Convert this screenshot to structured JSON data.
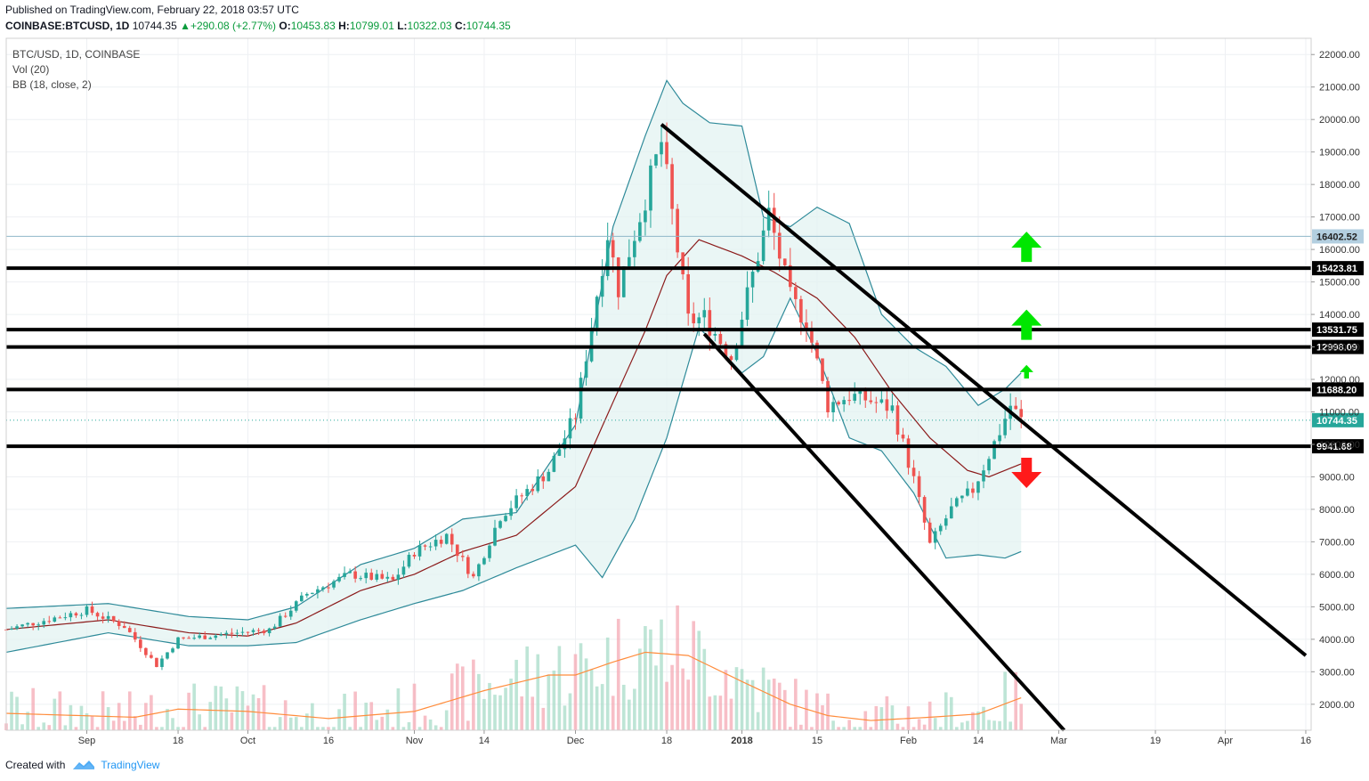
{
  "header": {
    "published": "Published on TradingView.com, February 22, 2018 03:57 UTC",
    "symbol": "COINBASE:BTCUSD, 1D",
    "last": "10744.35",
    "change": "▲+290.08 (+2.77%)",
    "o_label": "O:",
    "o": "10453.83",
    "h_label": "H:",
    "h": "10799.01",
    "l_label": "L:",
    "l": "10322.03",
    "c_label": "C:",
    "c": "10744.35"
  },
  "legend": {
    "line1": "BTC/USD, 1D, COINBASE",
    "line2": "Vol (20)",
    "line3": "BB (18, close, 2)"
  },
  "footer": {
    "created": "Created with",
    "brand": "TradingView"
  },
  "colors": {
    "up": "#26a69a",
    "down": "#ef5350",
    "bb_band": "#2e8a99",
    "bb_mid": "#8b1a1a",
    "vol_ma": "#ff8c3c",
    "arrow_up": "#00e600",
    "arrow_down": "#ff1a1a"
  },
  "chart_data": {
    "type": "candlestick",
    "ylim": [
      1200,
      22500
    ],
    "y_ticks": [
      2000,
      3000,
      4000,
      5000,
      6000,
      7000,
      8000,
      9000,
      10000,
      11000,
      12000,
      13000,
      14000,
      15000,
      16000,
      17000,
      18000,
      19000,
      20000,
      21000,
      22000
    ],
    "y_tick_labels": [
      "2000.00",
      "3000.00",
      "4000.00",
      "5000.00",
      "6000.00",
      "7000.00",
      "8000.00",
      "9000.00",
      "10000.00",
      "11000.00",
      "12000.00",
      "13000.00",
      "14000.00",
      "15000.00",
      "16000.00",
      "17000.00",
      "18000.00",
      "19000.00",
      "20000.00",
      "21000.00",
      "22000.00"
    ],
    "x_ticks": [
      {
        "date": "2017-09-01",
        "label": "Sep"
      },
      {
        "date": "2017-09-18",
        "label": "18"
      },
      {
        "date": "2017-10-01",
        "label": "Oct"
      },
      {
        "date": "2017-10-16",
        "label": "16"
      },
      {
        "date": "2017-11-01",
        "label": "Nov"
      },
      {
        "date": "2017-11-14",
        "label": "14"
      },
      {
        "date": "2017-12-01",
        "label": "Dec"
      },
      {
        "date": "2017-12-18",
        "label": "18"
      },
      {
        "date": "2018-01-01",
        "label": "2018"
      },
      {
        "date": "2018-01-15",
        "label": "15"
      },
      {
        "date": "2018-02-01",
        "label": "Feb"
      },
      {
        "date": "2018-02-14",
        "label": "14"
      },
      {
        "date": "2018-03-01",
        "label": "Mar"
      },
      {
        "date": "2018-03-19",
        "label": "19"
      },
      {
        "date": "2018-04-01",
        "label": "Apr"
      },
      {
        "date": "2018-04-16",
        "label": "16"
      }
    ],
    "x_range": [
      "2017-08-17",
      "2018-04-17"
    ],
    "horizontal_levels": [
      {
        "value": 15423.81,
        "label": "15423.81"
      },
      {
        "value": 13531.75,
        "label": "13531.75"
      },
      {
        "value": 12998.09,
        "label": "12998.09"
      },
      {
        "value": 11688.2,
        "label": "11688.20"
      },
      {
        "value": 9941.68,
        "label": "9941.68"
      }
    ],
    "thin_levels": [
      {
        "value": 16402.52,
        "label": "16402.52"
      }
    ],
    "last_price": {
      "value": 10744.35,
      "label": "10744.35"
    },
    "trend_lines": [
      {
        "from": {
          "date": "2017-12-17",
          "price": 19850
        },
        "to": {
          "date": "2018-04-16",
          "price": 3500
        }
      },
      {
        "from": {
          "date": "2017-12-25",
          "price": 13400
        },
        "to": {
          "date": "2018-03-02",
          "price": 1200
        }
      }
    ],
    "arrows": [
      {
        "date": "2018-02-23",
        "price": 16000,
        "direction": "up",
        "size": "large"
      },
      {
        "date": "2018-02-23",
        "price": 13600,
        "direction": "up",
        "size": "large"
      },
      {
        "date": "2018-02-23",
        "price": 12200,
        "direction": "up",
        "size": "small"
      },
      {
        "date": "2018-02-23",
        "price": 9150,
        "direction": "down",
        "size": "large"
      }
    ],
    "price_keypoints": [
      [
        "2017-08-17",
        4300
      ],
      [
        "2017-09-01",
        4900
      ],
      [
        "2017-09-08",
        4400
      ],
      [
        "2017-09-14",
        3200
      ],
      [
        "2017-09-18",
        4000
      ],
      [
        "2017-09-29",
        4200
      ],
      [
        "2017-10-05",
        4300
      ],
      [
        "2017-10-12",
        5400
      ],
      [
        "2017-10-20",
        6000
      ],
      [
        "2017-10-28",
        5800
      ],
      [
        "2017-11-01",
        6700
      ],
      [
        "2017-11-07",
        7200
      ],
      [
        "2017-11-12",
        5900
      ],
      [
        "2017-11-17",
        7800
      ],
      [
        "2017-11-26",
        9200
      ],
      [
        "2017-12-01",
        10900
      ],
      [
        "2017-12-07",
        16500
      ],
      [
        "2017-12-09",
        14800
      ],
      [
        "2017-12-17",
        19300
      ],
      [
        "2017-12-22",
        13800
      ],
      [
        "2017-12-25",
        13900
      ],
      [
        "2017-12-30",
        12700
      ],
      [
        "2018-01-06",
        17100
      ],
      [
        "2018-01-10",
        14500
      ],
      [
        "2018-01-13",
        13800
      ],
      [
        "2018-01-17",
        11200
      ],
      [
        "2018-01-21",
        11500
      ],
      [
        "2018-01-24",
        11400
      ],
      [
        "2018-01-29",
        11100
      ],
      [
        "2018-02-02",
        8900
      ],
      [
        "2018-02-05",
        6900
      ],
      [
        "2018-02-09",
        8000
      ],
      [
        "2018-02-13",
        8600
      ],
      [
        "2018-02-18",
        10400
      ],
      [
        "2018-02-20",
        11200
      ],
      [
        "2018-02-22",
        10744
      ]
    ],
    "bb_upper": [
      [
        "2017-08-17",
        4950
      ],
      [
        "2017-09-05",
        5100
      ],
      [
        "2017-09-20",
        4700
      ],
      [
        "2017-10-01",
        4600
      ],
      [
        "2017-10-10",
        5000
      ],
      [
        "2017-10-22",
        6300
      ],
      [
        "2017-11-01",
        6800
      ],
      [
        "2017-11-10",
        7700
      ],
      [
        "2017-11-20",
        7900
      ],
      [
        "2017-12-01",
        10600
      ],
      [
        "2017-12-08",
        16700
      ],
      [
        "2017-12-14",
        19500
      ],
      [
        "2017-12-18",
        21200
      ],
      [
        "2017-12-21",
        20500
      ],
      [
        "2017-12-26",
        19900
      ],
      [
        "2018-01-01",
        19800
      ],
      [
        "2018-01-05",
        17000
      ],
      [
        "2018-01-10",
        16700
      ],
      [
        "2018-01-15",
        17300
      ],
      [
        "2018-01-21",
        16800
      ],
      [
        "2018-01-27",
        14000
      ],
      [
        "2018-02-02",
        13000
      ],
      [
        "2018-02-08",
        12400
      ],
      [
        "2018-02-14",
        11200
      ],
      [
        "2018-02-19",
        11700
      ],
      [
        "2018-02-22",
        12200
      ]
    ],
    "bb_lower": [
      [
        "2017-08-17",
        3600
      ],
      [
        "2017-09-05",
        4200
      ],
      [
        "2017-09-20",
        3800
      ],
      [
        "2017-10-01",
        3800
      ],
      [
        "2017-10-10",
        3900
      ],
      [
        "2017-10-22",
        4600
      ],
      [
        "2017-11-01",
        5100
      ],
      [
        "2017-11-10",
        5500
      ],
      [
        "2017-11-20",
        6200
      ],
      [
        "2017-12-01",
        6900
      ],
      [
        "2017-12-06",
        5900
      ],
      [
        "2017-12-12",
        7700
      ],
      [
        "2017-12-18",
        10200
      ],
      [
        "2017-12-24",
        13600
      ],
      [
        "2018-01-01",
        12200
      ],
      [
        "2018-01-05",
        12700
      ],
      [
        "2018-01-10",
        14500
      ],
      [
        "2018-01-15",
        12800
      ],
      [
        "2018-01-21",
        10200
      ],
      [
        "2018-01-27",
        9800
      ],
      [
        "2018-02-02",
        8500
      ],
      [
        "2018-02-08",
        6500
      ],
      [
        "2018-02-14",
        6600
      ],
      [
        "2018-02-19",
        6500
      ],
      [
        "2018-02-22",
        6700
      ]
    ],
    "bb_mid": [
      [
        "2017-08-17",
        4300
      ],
      [
        "2017-09-05",
        4600
      ],
      [
        "2017-09-20",
        4200
      ],
      [
        "2017-10-01",
        4100
      ],
      [
        "2017-10-10",
        4500
      ],
      [
        "2017-10-22",
        5500
      ],
      [
        "2017-11-01",
        6000
      ],
      [
        "2017-11-10",
        6700
      ],
      [
        "2017-11-20",
        7200
      ],
      [
        "2017-12-01",
        8700
      ],
      [
        "2017-12-08",
        11300
      ],
      [
        "2017-12-14",
        13500
      ],
      [
        "2017-12-18",
        15200
      ],
      [
        "2017-12-24",
        16300
      ],
      [
        "2018-01-01",
        15800
      ],
      [
        "2018-01-07",
        15300
      ],
      [
        "2018-01-15",
        14500
      ],
      [
        "2018-01-22",
        13300
      ],
      [
        "2018-01-29",
        11600
      ],
      [
        "2018-02-05",
        10200
      ],
      [
        "2018-02-12",
        9200
      ],
      [
        "2018-02-16",
        9000
      ],
      [
        "2018-02-22",
        9400
      ]
    ],
    "vol_ma": [
      [
        "2017-08-17",
        1720
      ],
      [
        "2017-09-10",
        1600
      ],
      [
        "2017-09-18",
        1850
      ],
      [
        "2017-10-01",
        1780
      ],
      [
        "2017-10-16",
        1560
      ],
      [
        "2017-11-01",
        1780
      ],
      [
        "2017-11-14",
        2420
      ],
      [
        "2017-11-26",
        2900
      ],
      [
        "2017-12-01",
        2900
      ],
      [
        "2017-12-08",
        3300
      ],
      [
        "2017-12-14",
        3600
      ],
      [
        "2017-12-22",
        3500
      ],
      [
        "2018-01-01",
        2700
      ],
      [
        "2018-01-10",
        2000
      ],
      [
        "2018-01-17",
        1650
      ],
      [
        "2018-01-25",
        1500
      ],
      [
        "2018-02-05",
        1600
      ],
      [
        "2018-02-14",
        1700
      ],
      [
        "2018-02-22",
        2200
      ]
    ]
  }
}
